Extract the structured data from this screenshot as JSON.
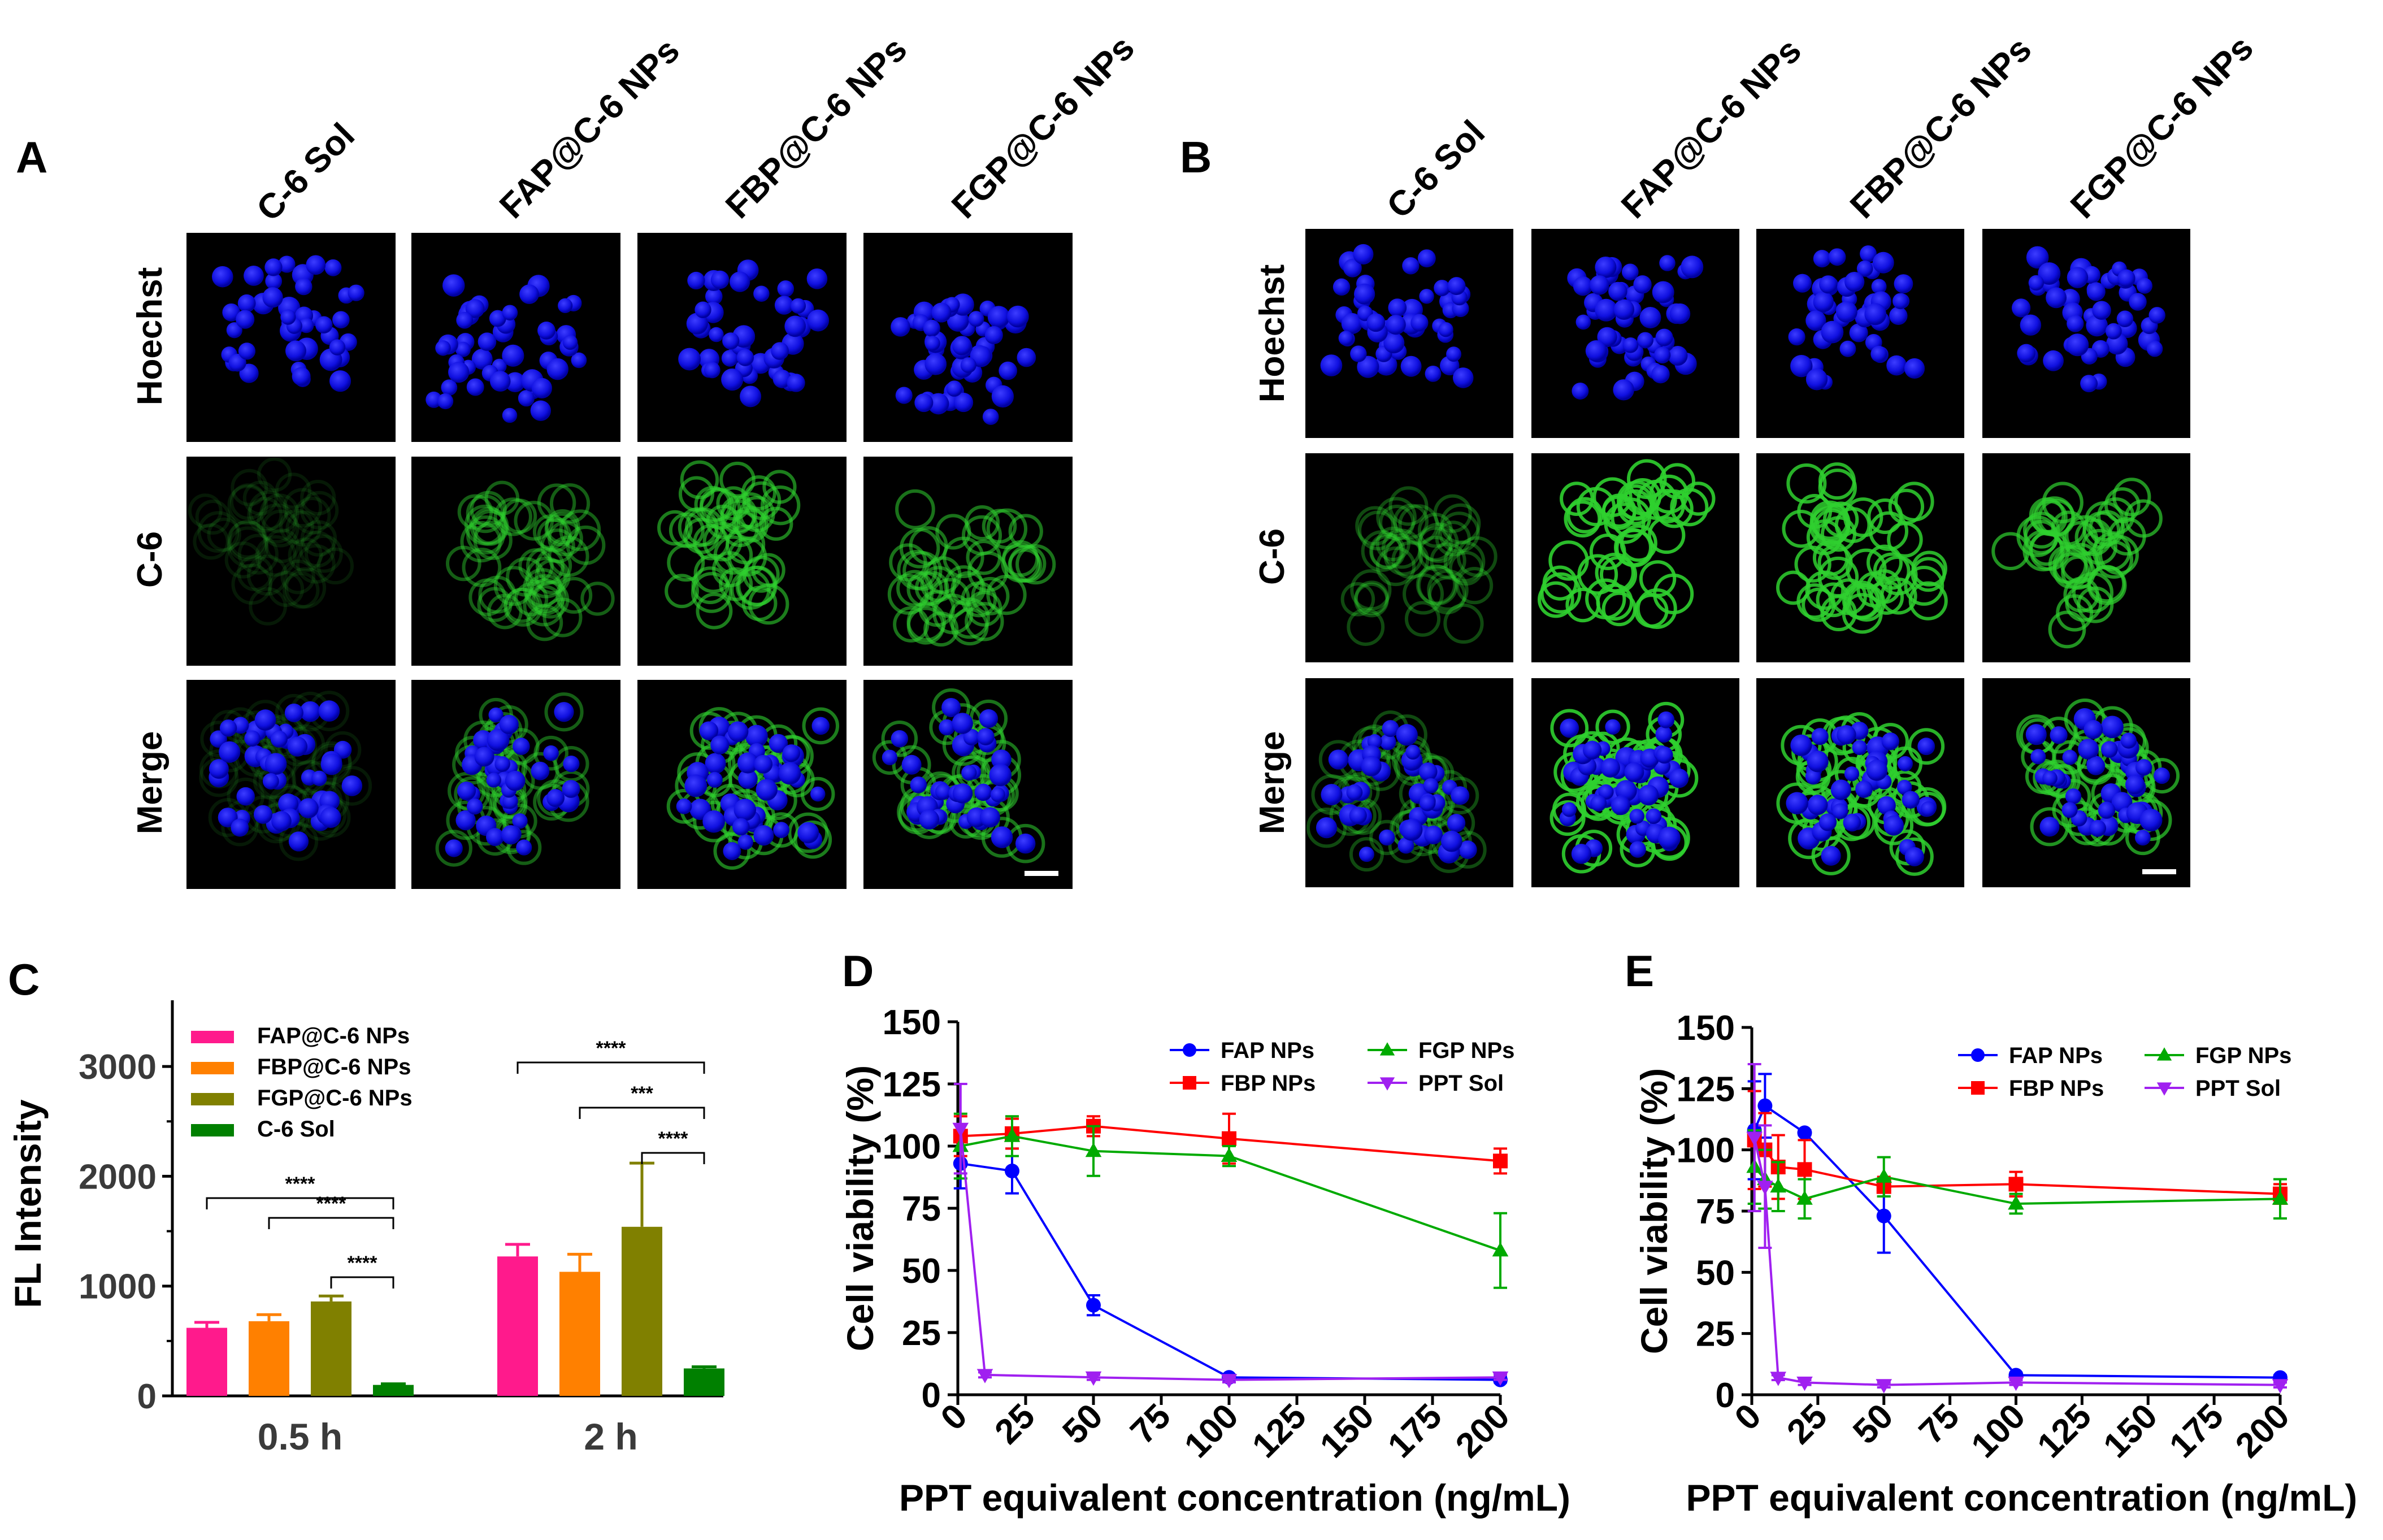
{
  "panel_letters": [
    "A",
    "B",
    "C",
    "D",
    "E"
  ],
  "microscopy": {
    "column_labels": [
      "C-6 Sol",
      "FAP@C-6 NPs",
      "FBP@C-6 NPs",
      "FGP@C-6 NPs"
    ],
    "row_labels": [
      "Hoechst",
      "C-6",
      "Merge"
    ]
  },
  "chart_data": [
    {
      "panel": "C",
      "type": "bar",
      "title": "",
      "xlabel": "",
      "ylabel": "FL Intensity",
      "categories": [
        "0.5 h",
        "2 h"
      ],
      "ylim": [
        0,
        3500
      ],
      "yticks": [
        0,
        1000,
        2000,
        3000
      ],
      "series": [
        {
          "name": "FAP@C-6 NPs",
          "color": "#ff1a8c",
          "values": [
            620,
            1270
          ],
          "errors": [
            50,
            110
          ]
        },
        {
          "name": "FBP@C-6 NPs",
          "color": "#ff8000",
          "values": [
            680,
            1130
          ],
          "errors": [
            60,
            160
          ]
        },
        {
          "name": "FGP@C-6 NPs",
          "color": "#808000",
          "values": [
            860,
            1540
          ],
          "errors": [
            50,
            580
          ]
        },
        {
          "name": "C-6 Sol",
          "color": "#008000",
          "values": [
            100,
            250
          ],
          "errors": [
            10,
            15
          ]
        }
      ],
      "significance": [
        {
          "group": 0,
          "from": 0,
          "to": 3,
          "label": "****"
        },
        {
          "group": 0,
          "from": 1,
          "to": 3,
          "label": "****"
        },
        {
          "group": 0,
          "from": 2,
          "to": 3,
          "label": "****"
        },
        {
          "group": 1,
          "from": 0,
          "to": 3,
          "label": "****"
        },
        {
          "group": 1,
          "from": 1,
          "to": 3,
          "label": "***"
        },
        {
          "group": 1,
          "from": 2,
          "to": 3,
          "label": "****"
        }
      ]
    },
    {
      "panel": "D",
      "type": "line",
      "xlabel": "PPT equivalent concentration (ng/mL)",
      "ylabel": "Cell viability (%)",
      "xlim": [
        0,
        200
      ],
      "ylim": [
        0,
        150
      ],
      "xticks": [
        0,
        25,
        50,
        75,
        100,
        125,
        150,
        175,
        200
      ],
      "yticks": [
        0,
        25,
        50,
        75,
        100,
        125,
        150
      ],
      "series": [
        {
          "name": "FAP NPs",
          "color": "#0000ff",
          "marker": "circle",
          "x": [
            1,
            20,
            50,
            100,
            200
          ],
          "y": [
            93,
            90,
            36,
            7,
            6
          ],
          "err": [
            10,
            9,
            4,
            1,
            1
          ]
        },
        {
          "name": "FBP NPs",
          "color": "#ff0000",
          "marker": "square",
          "x": [
            1,
            20,
            50,
            100,
            200
          ],
          "y": [
            104,
            105,
            108,
            103,
            94
          ],
          "err": [
            8,
            6,
            4,
            10,
            5
          ]
        },
        {
          "name": "FGP NPs",
          "color": "#00aa00",
          "marker": "triangle-up",
          "x": [
            1,
            20,
            50,
            100,
            200
          ],
          "y": [
            100,
            104,
            98,
            96,
            58
          ],
          "err": [
            13,
            8,
            10,
            4,
            15
          ]
        },
        {
          "name": "PPT Sol",
          "color": "#a020f0",
          "marker": "triangle-down",
          "x": [
            1,
            10,
            50,
            100,
            200
          ],
          "y": [
            107,
            8,
            7,
            6,
            7
          ],
          "err": [
            18,
            1,
            1,
            1,
            1
          ]
        }
      ]
    },
    {
      "panel": "E",
      "type": "line",
      "xlabel": "PPT equivalent concentration (ng/mL)",
      "ylabel": "Cell viability (%)",
      "xlim": [
        0,
        200
      ],
      "ylim": [
        0,
        150
      ],
      "xticks": [
        0,
        25,
        50,
        75,
        100,
        125,
        150,
        175,
        200
      ],
      "yticks": [
        0,
        25,
        50,
        75,
        100,
        125,
        150
      ],
      "series": [
        {
          "name": "FAP NPs",
          "color": "#0000ff",
          "marker": "circle",
          "x": [
            1,
            5,
            20,
            50,
            100,
            200
          ],
          "y": [
            108,
            118,
            107,
            73,
            8,
            7
          ],
          "err": [
            20,
            13,
            1,
            15,
            1,
            1
          ]
        },
        {
          "name": "FBP NPs",
          "color": "#ff0000",
          "marker": "square",
          "x": [
            1,
            5,
            10,
            20,
            50,
            100,
            200
          ],
          "y": [
            104,
            100,
            93,
            92,
            85,
            86,
            82
          ],
          "err": [
            20,
            15,
            13,
            12,
            4,
            5,
            4
          ]
        },
        {
          "name": "FGP NPs",
          "color": "#00aa00",
          "marker": "triangle-up",
          "x": [
            1,
            5,
            10,
            20,
            50,
            100,
            200
          ],
          "y": [
            93,
            88,
            85,
            80,
            89,
            78,
            80
          ],
          "err": [
            15,
            12,
            10,
            8,
            8,
            4,
            8
          ]
        },
        {
          "name": "PPT Sol",
          "color": "#a020f0",
          "marker": "triangle-down",
          "x": [
            1,
            5,
            10,
            20,
            50,
            100,
            200
          ],
          "y": [
            105,
            85,
            7,
            5,
            4,
            5,
            4
          ],
          "err": [
            30,
            25,
            1,
            1,
            1,
            1,
            1
          ]
        }
      ]
    }
  ]
}
